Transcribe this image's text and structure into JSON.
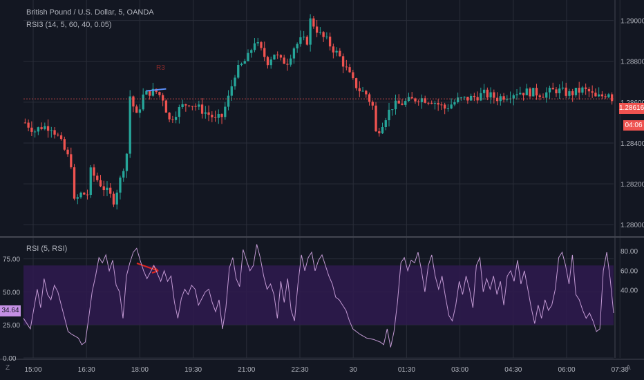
{
  "header": {
    "symbol_title": "British Pound / U.S. Dollar, 5, OANDA",
    "indicator_title": "RSI3 (14, 5, 60, 40, 0.05)"
  },
  "rsi_panel": {
    "title": "RSI (5, RSI)",
    "current_value": "34.64"
  },
  "price_tag": {
    "price": "1.28616",
    "countdown": "04:06"
  },
  "annotation": "R3",
  "corner_left": "Z",
  "corner_right": "A",
  "colors": {
    "background": "#131722",
    "grid": "#2a2e39",
    "up": "#26a69a",
    "down": "#ef5350",
    "rsi_line": "#c39ad4",
    "band": "#2f1a4f",
    "arrow": "#e0261f",
    "trendline": "#5b8ff9",
    "rsi_tag": "#c490e4"
  },
  "chart_data": [
    {
      "type": "candlestick",
      "title": "British Pound / U.S. Dollar, 5, OANDA",
      "ylim": [
        1.2795,
        1.291
      ],
      "yticks": [
        "1.29000",
        "1.28800",
        "1.28600",
        "1.28400",
        "1.28200",
        "1.28000"
      ],
      "xticks": [
        "15:00",
        "16:30",
        "18:00",
        "19:30",
        "21:00",
        "22:30",
        "30",
        "01:30",
        "03:00",
        "04:30",
        "06:00",
        "07:30"
      ],
      "close_path": [
        [
          0,
          1.285
        ],
        [
          3,
          1.2846
        ],
        [
          5,
          1.2848
        ],
        [
          8,
          1.2848
        ],
        [
          10,
          1.2843
        ],
        [
          14,
          1.283
        ],
        [
          15,
          1.2811
        ],
        [
          17,
          1.2815
        ],
        [
          19,
          1.2815
        ],
        [
          20,
          1.2826
        ],
        [
          22,
          1.2822
        ],
        [
          24,
          1.2818
        ],
        [
          26,
          1.2814
        ],
        [
          27,
          1.2812
        ],
        [
          29,
          1.2822
        ],
        [
          31,
          1.2835
        ],
        [
          32,
          1.2863
        ],
        [
          34,
          1.2853
        ],
        [
          36,
          1.2863
        ],
        [
          38,
          1.2865
        ],
        [
          40,
          1.2865
        ],
        [
          42,
          1.2862
        ],
        [
          44,
          1.2851
        ],
        [
          46,
          1.2855
        ],
        [
          48,
          1.2858
        ],
        [
          50,
          1.286
        ],
        [
          52,
          1.2858
        ],
        [
          54,
          1.2856
        ],
        [
          57,
          1.2853
        ],
        [
          58,
          1.2851
        ],
        [
          60,
          1.2853
        ],
        [
          62,
          1.2862
        ],
        [
          64,
          1.2874
        ],
        [
          66,
          1.2878
        ],
        [
          68,
          1.2882
        ],
        [
          70,
          1.289
        ],
        [
          72,
          1.2885
        ],
        [
          74,
          1.288
        ],
        [
          76,
          1.2884
        ],
        [
          78,
          1.288
        ],
        [
          80,
          1.288
        ],
        [
          82,
          1.2887
        ],
        [
          84,
          1.289
        ],
        [
          86,
          1.289
        ],
        [
          87,
          1.29
        ],
        [
          88,
          1.2898
        ],
        [
          90,
          1.2893
        ],
        [
          92,
          1.289
        ],
        [
          94,
          1.2886
        ],
        [
          96,
          1.2882
        ],
        [
          98,
          1.2876
        ],
        [
          100,
          1.287
        ],
        [
          102,
          1.2866
        ],
        [
          104,
          1.2864
        ],
        [
          106,
          1.2858
        ],
        [
          107,
          1.2845
        ],
        [
          108,
          1.2847
        ],
        [
          110,
          1.2853
        ],
        [
          112,
          1.2858
        ],
        [
          116,
          1.286
        ],
        [
          120,
          1.2862
        ],
        [
          124,
          1.2861
        ],
        [
          128,
          1.2857
        ],
        [
          132,
          1.2861
        ],
        [
          136,
          1.2862
        ],
        [
          140,
          1.2864
        ],
        [
          144,
          1.2862
        ],
        [
          148,
          1.2864
        ],
        [
          150,
          1.2865
        ],
        [
          154,
          1.2865
        ],
        [
          158,
          1.2864
        ],
        [
          162,
          1.2866
        ],
        [
          166,
          1.2864
        ],
        [
          170,
          1.2866
        ],
        [
          172,
          1.2865
        ],
        [
          174,
          1.2862
        ],
        [
          176,
          1.2863
        ],
        [
          178,
          1.2865
        ],
        [
          179,
          1.2862
        ]
      ],
      "candle_count": 180
    },
    {
      "type": "line",
      "title": "RSI (5, RSI)",
      "ylim": [
        0,
        90
      ],
      "yticks_left": [
        "75.00",
        "50.00",
        "25.00",
        "0.00"
      ],
      "yticks_right": [
        "80.00",
        "60.00",
        "40.00"
      ],
      "band": [
        25,
        70
      ],
      "rsi_path": [
        [
          0,
          30
        ],
        [
          2,
          22
        ],
        [
          4,
          52
        ],
        [
          5,
          38
        ],
        [
          6,
          60
        ],
        [
          7,
          48
        ],
        [
          8,
          44
        ],
        [
          9,
          55
        ],
        [
          10,
          50
        ],
        [
          12,
          30
        ],
        [
          13,
          20
        ],
        [
          14,
          18
        ],
        [
          16,
          15
        ],
        [
          17,
          10
        ],
        [
          18,
          12
        ],
        [
          19,
          30
        ],
        [
          20,
          50
        ],
        [
          21,
          62
        ],
        [
          22,
          76
        ],
        [
          23,
          72
        ],
        [
          24,
          78
        ],
        [
          25,
          66
        ],
        [
          26,
          74
        ],
        [
          27,
          55
        ],
        [
          28,
          50
        ],
        [
          29,
          30
        ],
        [
          30,
          62
        ],
        [
          31,
          72
        ],
        [
          32,
          80
        ],
        [
          33,
          83
        ],
        [
          34,
          74
        ],
        [
          35,
          66
        ],
        [
          36,
          60
        ],
        [
          38,
          70
        ],
        [
          40,
          58
        ],
        [
          41,
          66
        ],
        [
          42,
          58
        ],
        [
          43,
          62
        ],
        [
          44,
          42
        ],
        [
          45,
          30
        ],
        [
          46,
          45
        ],
        [
          47,
          52
        ],
        [
          48,
          48
        ],
        [
          49,
          55
        ],
        [
          50,
          52
        ],
        [
          51,
          40
        ],
        [
          53,
          50
        ],
        [
          54,
          52
        ],
        [
          55,
          42
        ],
        [
          56,
          35
        ],
        [
          57,
          44
        ],
        [
          58,
          22
        ],
        [
          59,
          38
        ],
        [
          60,
          68
        ],
        [
          61,
          76
        ],
        [
          62,
          60
        ],
        [
          63,
          54
        ],
        [
          64,
          82
        ],
        [
          65,
          74
        ],
        [
          66,
          66
        ],
        [
          67,
          70
        ],
        [
          68,
          86
        ],
        [
          69,
          76
        ],
        [
          70,
          62
        ],
        [
          71,
          52
        ],
        [
          72,
          56
        ],
        [
          73,
          48
        ],
        [
          74,
          30
        ],
        [
          75,
          58
        ],
        [
          76,
          42
        ],
        [
          77,
          60
        ],
        [
          78,
          36
        ],
        [
          79,
          28
        ],
        [
          80,
          56
        ],
        [
          81,
          78
        ],
        [
          82,
          66
        ],
        [
          83,
          76
        ],
        [
          84,
          80
        ],
        [
          85,
          66
        ],
        [
          86,
          74
        ],
        [
          87,
          78
        ],
        [
          88,
          70
        ],
        [
          89,
          62
        ],
        [
          90,
          56
        ],
        [
          91,
          46
        ],
        [
          92,
          44
        ],
        [
          93,
          40
        ],
        [
          94,
          36
        ],
        [
          95,
          28
        ],
        [
          96,
          22
        ],
        [
          98,
          18
        ],
        [
          100,
          15
        ],
        [
          102,
          14
        ],
        [
          104,
          12
        ],
        [
          105,
          10
        ],
        [
          106,
          22
        ],
        [
          107,
          8
        ],
        [
          108,
          20
        ],
        [
          109,
          42
        ],
        [
          110,
          72
        ],
        [
          111,
          76
        ],
        [
          112,
          66
        ],
        [
          113,
          74
        ],
        [
          114,
          72
        ],
        [
          115,
          80
        ],
        [
          116,
          66
        ],
        [
          117,
          50
        ],
        [
          118,
          70
        ],
        [
          119,
          78
        ],
        [
          120,
          62
        ],
        [
          121,
          52
        ],
        [
          122,
          62
        ],
        [
          123,
          46
        ],
        [
          124,
          32
        ],
        [
          125,
          28
        ],
        [
          126,
          40
        ],
        [
          127,
          58
        ],
        [
          128,
          48
        ],
        [
          129,
          62
        ],
        [
          130,
          52
        ],
        [
          131,
          38
        ],
        [
          132,
          70
        ],
        [
          133,
          76
        ],
        [
          134,
          50
        ],
        [
          135,
          60
        ],
        [
          136,
          52
        ],
        [
          137,
          62
        ],
        [
          138,
          48
        ],
        [
          139,
          58
        ],
        [
          140,
          40
        ],
        [
          141,
          62
        ],
        [
          142,
          66
        ],
        [
          143,
          58
        ],
        [
          144,
          74
        ],
        [
          145,
          56
        ],
        [
          146,
          66
        ],
        [
          147,
          52
        ],
        [
          148,
          38
        ],
        [
          149,
          26
        ],
        [
          150,
          40
        ],
        [
          151,
          30
        ],
        [
          152,
          44
        ],
        [
          153,
          36
        ],
        [
          154,
          40
        ],
        [
          155,
          52
        ],
        [
          156,
          76
        ],
        [
          157,
          80
        ],
        [
          158,
          70
        ],
        [
          159,
          56
        ],
        [
          160,
          78
        ],
        [
          161,
          48
        ],
        [
          162,
          44
        ],
        [
          163,
          36
        ],
        [
          164,
          30
        ],
        [
          165,
          34
        ],
        [
          166,
          28
        ],
        [
          167,
          20
        ],
        [
          168,
          22
        ],
        [
          169,
          66
        ],
        [
          170,
          80
        ],
        [
          171,
          60
        ],
        [
          172,
          34
        ]
      ]
    }
  ]
}
